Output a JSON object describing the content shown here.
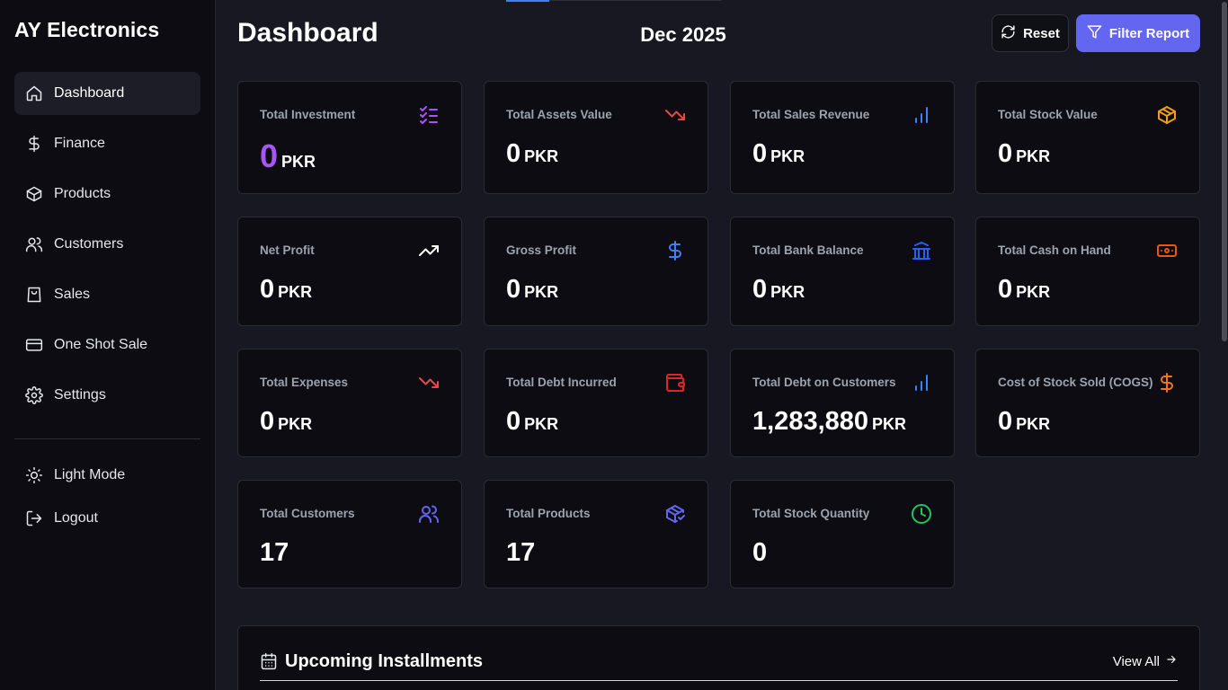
{
  "app": {
    "brand": "AY Electronics"
  },
  "sidebar": {
    "items": [
      {
        "label": "Dashboard",
        "icon": "home-icon",
        "active": true
      },
      {
        "label": "Finance",
        "icon": "dollar-icon"
      },
      {
        "label": "Products",
        "icon": "box-icon"
      },
      {
        "label": "Customers",
        "icon": "users-icon"
      },
      {
        "label": "Sales",
        "icon": "shopping-bag-icon"
      },
      {
        "label": "One Shot Sale",
        "icon": "credit-card-icon"
      },
      {
        "label": "Settings",
        "icon": "gear-icon"
      }
    ],
    "footer": [
      {
        "label": "Light Mode",
        "icon": "sun-icon"
      },
      {
        "label": "Logout",
        "icon": "logout-icon"
      }
    ]
  },
  "header": {
    "title": "Dashboard",
    "period": "Dec 2025",
    "reset_label": "Reset",
    "filter_label": "Filter Report",
    "filter_color": "#6366f1"
  },
  "cards": [
    {
      "label": "Total Investment",
      "value": "0",
      "unit": "PKR",
      "icon": "list-check-icon",
      "color": "#a855f7"
    },
    {
      "label": "Total Assets Value",
      "value": "0",
      "unit": "PKR",
      "icon": "trending-down-icon",
      "color": "#ef4444"
    },
    {
      "label": "Total Sales Revenue",
      "value": "0",
      "unit": "PKR",
      "icon": "bar-chart-icon",
      "color": "#3b82f6"
    },
    {
      "label": "Total Stock Value",
      "value": "0",
      "unit": "PKR",
      "icon": "package-icon",
      "color": "#f59e0b"
    },
    {
      "label": "Net Profit",
      "value": "0",
      "unit": "PKR",
      "icon": "trending-up-icon",
      "color": "#ffffff"
    },
    {
      "label": "Gross Profit",
      "value": "0",
      "unit": "PKR",
      "icon": "dollar-sign-icon",
      "color": "#3b82f6"
    },
    {
      "label": "Total Bank Balance",
      "value": "0",
      "unit": "PKR",
      "icon": "bank-icon",
      "color": "#2563eb"
    },
    {
      "label": "Total Cash on Hand",
      "value": "0",
      "unit": "PKR",
      "icon": "banknote-icon",
      "color": "#ea580c"
    },
    {
      "label": "Total Expenses",
      "value": "0",
      "unit": "PKR",
      "icon": "trending-down-icon",
      "color": "#ef4444"
    },
    {
      "label": "Total Debt Incurred",
      "value": "0",
      "unit": "PKR",
      "icon": "wallet-icon",
      "color": "#dc2626"
    },
    {
      "label": "Total Debt on Customers",
      "value": "1,283,880",
      "unit": "PKR",
      "icon": "bar-chart-icon",
      "color": "#3b82f6"
    },
    {
      "label": "Cost of Stock Sold (COGS)",
      "value": "0",
      "unit": "PKR",
      "icon": "dollar-sign-icon",
      "color": "#f97316"
    },
    {
      "label": "Total Customers",
      "value": "17",
      "unit": "",
      "icon": "users-icon",
      "color": "#6366f1"
    },
    {
      "label": "Total Products",
      "value": "17",
      "unit": "",
      "icon": "package-check-icon",
      "color": "#6366f1"
    },
    {
      "label": "Total Stock Quantity",
      "value": "0",
      "unit": "",
      "icon": "clock-icon",
      "color": "#22c55e"
    }
  ],
  "installments": {
    "title": "Upcoming Installments",
    "view_all": "View All"
  }
}
